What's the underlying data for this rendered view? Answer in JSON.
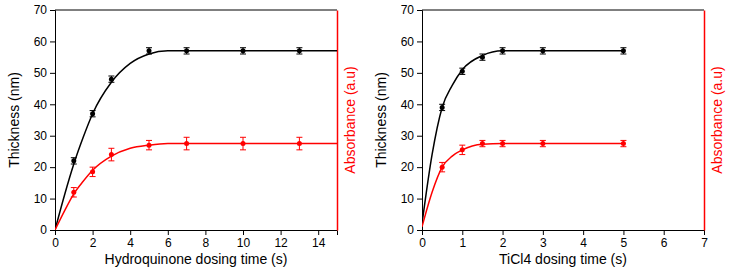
{
  "chart_data": [
    {
      "type": "scatter",
      "x_label": "Hydroquinone dosing time (s)",
      "y_label": "Thickness (nm)",
      "y2_label": "Absorbance (a.u)",
      "xlim": [
        0,
        15
      ],
      "xticks": [
        0,
        2,
        4,
        6,
        8,
        10,
        12,
        14
      ],
      "ylim": [
        0,
        70
      ],
      "yticks": [
        0,
        10,
        20,
        30,
        40,
        50,
        60,
        70
      ],
      "y2lim": [
        0,
        70
      ],
      "y2ticks": [],
      "series": [
        {
          "type": "scatter",
          "marker": "circle",
          "color": "#000000",
          "x": [
            1,
            2,
            3,
            5,
            7,
            10,
            13
          ],
          "values": [
            22,
            37,
            48,
            57,
            57,
            57,
            57
          ],
          "errors": [
            1,
            1,
            1,
            1,
            1,
            1,
            1
          ]
        },
        {
          "type": "scatter",
          "marker": "circle",
          "color": "#ff0000",
          "axis": "y2",
          "x": [
            1,
            2,
            3,
            5,
            7,
            10,
            13
          ],
          "values": [
            12,
            18.5,
            24,
            27,
            27.5,
            27.5,
            27.5
          ],
          "errors": [
            1.5,
            1.5,
            2,
            1.5,
            2,
            2,
            2
          ]
        },
        {
          "type": "line",
          "line_style": "solid",
          "color": "#000000",
          "x": [
            0,
            0.5,
            1,
            1.5,
            2,
            3,
            4,
            5,
            6,
            7,
            10,
            15
          ],
          "values": [
            0,
            11,
            21,
            29.5,
            37,
            47,
            53,
            56,
            57,
            57,
            57,
            57
          ]
        },
        {
          "type": "line",
          "line_style": "solid",
          "color": "#ff0000",
          "axis": "y2",
          "x": [
            0,
            0.5,
            1,
            1.5,
            2,
            3,
            4,
            5,
            6,
            7,
            10,
            15
          ],
          "values": [
            0,
            6,
            11.5,
            15.5,
            19,
            23.5,
            26,
            27,
            27.5,
            27.5,
            27.5,
            27.5
          ]
        }
      ]
    },
    {
      "type": "scatter",
      "x_label": "TiCl4 dosing time (s)",
      "y_label": "Thickness (nm)",
      "y2_label": "Absorbance (a.u)",
      "xlim": [
        0,
        7
      ],
      "xticks": [
        0,
        1,
        2,
        3,
        4,
        5,
        6,
        7
      ],
      "ylim": [
        0,
        70
      ],
      "yticks": [
        0,
        10,
        20,
        30,
        40,
        50,
        60,
        70
      ],
      "y2lim": [
        0,
        70
      ],
      "y2ticks": [],
      "series": [
        {
          "type": "scatter",
          "marker": "circle",
          "color": "#000000",
          "x": [
            0.5,
            1,
            1.5,
            2,
            3,
            5
          ],
          "values": [
            39,
            50.5,
            55,
            57,
            57,
            57
          ],
          "errors": [
            1,
            1,
            1,
            1,
            1,
            1
          ]
        },
        {
          "type": "scatter",
          "marker": "circle",
          "color": "#ff0000",
          "axis": "y2",
          "x": [
            0.5,
            1,
            1.5,
            2,
            3,
            5
          ],
          "values": [
            20,
            25.5,
            27.5,
            27.5,
            27.5,
            27.5
          ],
          "errors": [
            1.5,
            1.5,
            1,
            1,
            1,
            1
          ]
        },
        {
          "type": "line",
          "line_style": "solid",
          "color": "#000000",
          "x": [
            0,
            0.25,
            0.5,
            0.75,
            1,
            1.5,
            2,
            3,
            5
          ],
          "values": [
            2,
            24,
            39,
            46,
            51,
            55.5,
            57,
            57,
            57
          ]
        },
        {
          "type": "line",
          "line_style": "solid",
          "color": "#ff0000",
          "axis": "y2",
          "x": [
            0,
            0.25,
            0.5,
            0.75,
            1,
            1.5,
            2,
            3,
            5
          ],
          "values": [
            1,
            12,
            20,
            23.5,
            25.5,
            27.3,
            27.5,
            27.5,
            27.5
          ]
        }
      ]
    }
  ]
}
